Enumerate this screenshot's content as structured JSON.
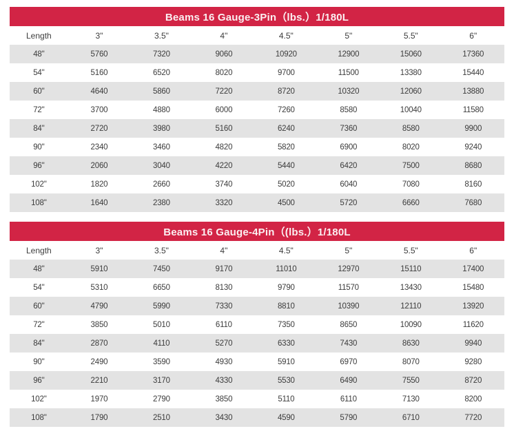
{
  "colors": {
    "header_red": "#d22445",
    "title_text": "#fbeff1",
    "row_alt_gray": "#e3e3e3",
    "body_text": "#3c3c3c"
  },
  "tables": [
    {
      "title": "Beams 16 Gauge-3Pin（lbs.）1/180L",
      "columns": [
        "Length",
        "3\"",
        "3.5\"",
        "4\"",
        "4.5\"",
        "5\"",
        "5.5\"",
        "6\""
      ],
      "rows": [
        [
          "48\"",
          "5760",
          "7320",
          "9060",
          "10920",
          "12900",
          "15060",
          "17360"
        ],
        [
          "54\"",
          "5160",
          "6520",
          "8020",
          "9700",
          "11500",
          "13380",
          "15440"
        ],
        [
          "60\"",
          "4640",
          "5860",
          "7220",
          "8720",
          "10320",
          "12060",
          "13880"
        ],
        [
          "72\"",
          "3700",
          "4880",
          "6000",
          "7260",
          "8580",
          "10040",
          "11580"
        ],
        [
          "84\"",
          "2720",
          "3980",
          "5160",
          "6240",
          "7360",
          "8580",
          "9900"
        ],
        [
          "90\"",
          "2340",
          "3460",
          "4820",
          "5820",
          "6900",
          "8020",
          "9240"
        ],
        [
          "96\"",
          "2060",
          "3040",
          "4220",
          "5440",
          "6420",
          "7500",
          "8680"
        ],
        [
          "102\"",
          "1820",
          "2660",
          "3740",
          "5020",
          "6040",
          "7080",
          "8160"
        ],
        [
          "108\"",
          "1640",
          "2380",
          "3320",
          "4500",
          "5720",
          "6660",
          "7680"
        ]
      ]
    },
    {
      "title": "Beams 16 Gauge-4Pin（(lbs.）1/180L",
      "columns": [
        "Length",
        "3\"",
        "3.5\"",
        "4\"",
        "4.5\"",
        "5\"",
        "5.5\"",
        "6\""
      ],
      "rows": [
        [
          "48\"",
          "5910",
          "7450",
          "9170",
          "11010",
          "12970",
          "15110",
          "17400"
        ],
        [
          "54\"",
          "5310",
          "6650",
          "8130",
          "9790",
          "11570",
          "13430",
          "15480"
        ],
        [
          "60\"",
          "4790",
          "5990",
          "7330",
          "8810",
          "10390",
          "12110",
          "13920"
        ],
        [
          "72\"",
          "3850",
          "5010",
          "6110",
          "7350",
          "8650",
          "10090",
          "11620"
        ],
        [
          "84\"",
          "2870",
          "4110",
          "5270",
          "6330",
          "7430",
          "8630",
          "9940"
        ],
        [
          "90\"",
          "2490",
          "3590",
          "4930",
          "5910",
          "6970",
          "8070",
          "9280"
        ],
        [
          "96\"",
          "2210",
          "3170",
          "4330",
          "5530",
          "6490",
          "7550",
          "8720"
        ],
        [
          "102\"",
          "1970",
          "2790",
          "3850",
          "5110",
          "6110",
          "7130",
          "8200"
        ],
        [
          "108\"",
          "1790",
          "2510",
          "3430",
          "4590",
          "5790",
          "6710",
          "7720"
        ]
      ]
    }
  ]
}
